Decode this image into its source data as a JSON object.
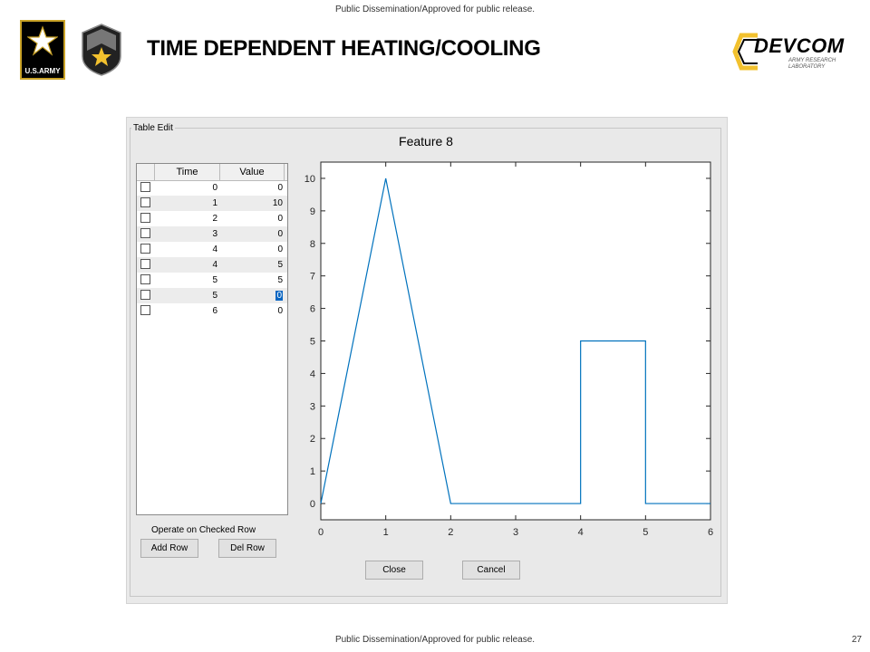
{
  "header": {
    "top_banner": "Public Dissemination/Approved for public release.",
    "title": "TIME DEPENDENT HEATING/COOLING",
    "bottom_banner": "Public Dissemination/Approved for public release.",
    "page_number": "27"
  },
  "logos": {
    "army_text": "U.S.ARMY",
    "devcom_text": "DEVCOM",
    "devcom_sub": "ARMY RESEARCH LABORATORY"
  },
  "app": {
    "group_label": "Table Edit",
    "table": {
      "columns": [
        "Time",
        "Value"
      ],
      "rows": [
        {
          "time": "0",
          "value": "0",
          "checked": false
        },
        {
          "time": "1",
          "value": "10",
          "checked": false
        },
        {
          "time": "2",
          "value": "0",
          "checked": false
        },
        {
          "time": "3",
          "value": "0",
          "checked": false
        },
        {
          "time": "4",
          "value": "0",
          "checked": false
        },
        {
          "time": "4",
          "value": "5",
          "checked": false
        },
        {
          "time": "5",
          "value": "5",
          "checked": false
        },
        {
          "time": "5",
          "value": "0",
          "checked": false,
          "selected": true
        },
        {
          "time": "6",
          "value": "0",
          "checked": false
        }
      ]
    },
    "operate_label": "Operate on Checked Row",
    "buttons": {
      "add_row": "Add Row",
      "del_row": "Del Row",
      "close": "Close",
      "cancel": "Cancel"
    }
  },
  "chart_data": {
    "type": "line",
    "title": "Feature 8",
    "xlabel": "",
    "ylabel": "",
    "xlim": [
      0,
      6
    ],
    "ylim": [
      -0.5,
      10.5
    ],
    "xticks": [
      0,
      1,
      2,
      3,
      4,
      5,
      6
    ],
    "yticks": [
      0,
      1,
      2,
      3,
      4,
      5,
      6,
      7,
      8,
      9,
      10
    ],
    "grid": false,
    "series": [
      {
        "x": [
          0,
          1,
          2,
          3,
          4,
          4,
          5,
          5,
          6
        ],
        "y": [
          0,
          10,
          0,
          0,
          0,
          5,
          5,
          0,
          0
        ],
        "color": "#0072bd"
      }
    ]
  }
}
